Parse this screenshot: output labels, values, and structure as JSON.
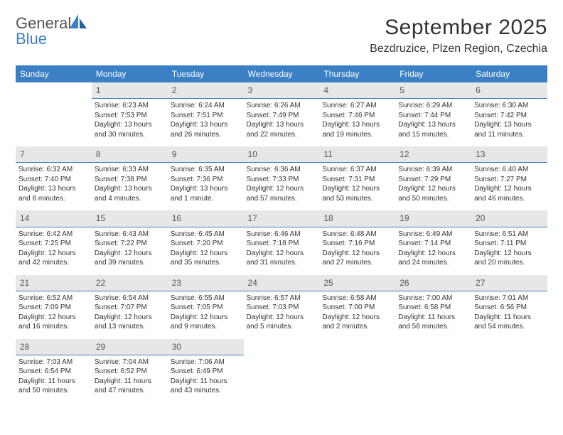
{
  "logo": {
    "word1": "General",
    "word2": "Blue"
  },
  "title": {
    "month": "September 2025",
    "location": "Bezdruzice, Plzen Region, Czechia"
  },
  "weekdays": [
    "Sunday",
    "Monday",
    "Tuesday",
    "Wednesday",
    "Thursday",
    "Friday",
    "Saturday"
  ],
  "colors": {
    "accent": "#3b7fc4",
    "daynum_bg": "#e7e7e7",
    "text": "#333333",
    "background": "#ffffff"
  },
  "typography": {
    "title_fontsize": 30,
    "location_fontsize": 16,
    "header_fontsize": 12,
    "cell_fontsize": 10
  },
  "weeks": [
    [
      null,
      {
        "n": "1",
        "sr": "6:23 AM",
        "ss": "7:53 PM",
        "dl": "13 hours and 30 minutes."
      },
      {
        "n": "2",
        "sr": "6:24 AM",
        "ss": "7:51 PM",
        "dl": "13 hours and 26 minutes."
      },
      {
        "n": "3",
        "sr": "6:26 AM",
        "ss": "7:49 PM",
        "dl": "13 hours and 22 minutes."
      },
      {
        "n": "4",
        "sr": "6:27 AM",
        "ss": "7:46 PM",
        "dl": "13 hours and 19 minutes."
      },
      {
        "n": "5",
        "sr": "6:29 AM",
        "ss": "7:44 PM",
        "dl": "13 hours and 15 minutes."
      },
      {
        "n": "6",
        "sr": "6:30 AM",
        "ss": "7:42 PM",
        "dl": "13 hours and 11 minutes."
      }
    ],
    [
      {
        "n": "7",
        "sr": "6:32 AM",
        "ss": "7:40 PM",
        "dl": "13 hours and 8 minutes."
      },
      {
        "n": "8",
        "sr": "6:33 AM",
        "ss": "7:38 PM",
        "dl": "13 hours and 4 minutes."
      },
      {
        "n": "9",
        "sr": "6:35 AM",
        "ss": "7:36 PM",
        "dl": "13 hours and 1 minute."
      },
      {
        "n": "10",
        "sr": "6:36 AM",
        "ss": "7:33 PM",
        "dl": "12 hours and 57 minutes."
      },
      {
        "n": "11",
        "sr": "6:37 AM",
        "ss": "7:31 PM",
        "dl": "12 hours and 53 minutes."
      },
      {
        "n": "12",
        "sr": "6:39 AM",
        "ss": "7:29 PM",
        "dl": "12 hours and 50 minutes."
      },
      {
        "n": "13",
        "sr": "6:40 AM",
        "ss": "7:27 PM",
        "dl": "12 hours and 46 minutes."
      }
    ],
    [
      {
        "n": "14",
        "sr": "6:42 AM",
        "ss": "7:25 PM",
        "dl": "12 hours and 42 minutes."
      },
      {
        "n": "15",
        "sr": "6:43 AM",
        "ss": "7:22 PM",
        "dl": "12 hours and 39 minutes."
      },
      {
        "n": "16",
        "sr": "6:45 AM",
        "ss": "7:20 PM",
        "dl": "12 hours and 35 minutes."
      },
      {
        "n": "17",
        "sr": "6:46 AM",
        "ss": "7:18 PM",
        "dl": "12 hours and 31 minutes."
      },
      {
        "n": "18",
        "sr": "6:48 AM",
        "ss": "7:16 PM",
        "dl": "12 hours and 27 minutes."
      },
      {
        "n": "19",
        "sr": "6:49 AM",
        "ss": "7:14 PM",
        "dl": "12 hours and 24 minutes."
      },
      {
        "n": "20",
        "sr": "6:51 AM",
        "ss": "7:11 PM",
        "dl": "12 hours and 20 minutes."
      }
    ],
    [
      {
        "n": "21",
        "sr": "6:52 AM",
        "ss": "7:09 PM",
        "dl": "12 hours and 16 minutes."
      },
      {
        "n": "22",
        "sr": "6:54 AM",
        "ss": "7:07 PM",
        "dl": "12 hours and 13 minutes."
      },
      {
        "n": "23",
        "sr": "6:55 AM",
        "ss": "7:05 PM",
        "dl": "12 hours and 9 minutes."
      },
      {
        "n": "24",
        "sr": "6:57 AM",
        "ss": "7:03 PM",
        "dl": "12 hours and 5 minutes."
      },
      {
        "n": "25",
        "sr": "6:58 AM",
        "ss": "7:00 PM",
        "dl": "12 hours and 2 minutes."
      },
      {
        "n": "26",
        "sr": "7:00 AM",
        "ss": "6:58 PM",
        "dl": "11 hours and 58 minutes."
      },
      {
        "n": "27",
        "sr": "7:01 AM",
        "ss": "6:56 PM",
        "dl": "11 hours and 54 minutes."
      }
    ],
    [
      {
        "n": "28",
        "sr": "7:03 AM",
        "ss": "6:54 PM",
        "dl": "11 hours and 50 minutes."
      },
      {
        "n": "29",
        "sr": "7:04 AM",
        "ss": "6:52 PM",
        "dl": "11 hours and 47 minutes."
      },
      {
        "n": "30",
        "sr": "7:06 AM",
        "ss": "6:49 PM",
        "dl": "11 hours and 43 minutes."
      },
      null,
      null,
      null,
      null
    ]
  ],
  "labels": {
    "sunrise": "Sunrise:",
    "sunset": "Sunset:",
    "daylight": "Daylight:"
  }
}
